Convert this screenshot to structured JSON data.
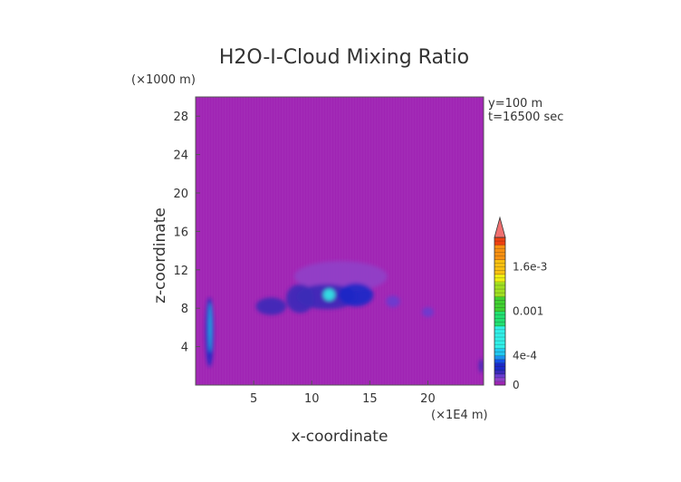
{
  "chart_data": {
    "type": "heatmap",
    "title": "H2O-I-Cloud Mixing Ratio",
    "xlabel": "x-coordinate",
    "ylabel": "z-coordinate",
    "x_unit": "(×1E4 m)",
    "y_unit": "(×1000 m)",
    "annotations": [
      "y=100 m",
      "t=16500 sec"
    ],
    "xlim": [
      0,
      24.8
    ],
    "ylim": [
      0,
      30
    ],
    "x_ticks": [
      5,
      10,
      15,
      20
    ],
    "y_ticks": [
      4,
      8,
      12,
      16,
      20,
      24,
      28
    ],
    "colorbar": {
      "min": 0,
      "max": 0.002,
      "tick_labels": [
        "0",
        "4e-4",
        "0.001",
        "1.6e-3"
      ],
      "tick_values": [
        0,
        0.0004,
        0.001,
        0.0016
      ],
      "extend": "max"
    },
    "background_value": 0,
    "regions": [
      {
        "x": 1.2,
        "z": 5.5,
        "rx": 0.35,
        "rz": 3.6,
        "value": 0.00025
      },
      {
        "x": 1.25,
        "z": 6.0,
        "rx": 0.12,
        "rz": 2.6,
        "value": 0.00045
      },
      {
        "x": 6.5,
        "z": 8.2,
        "rx": 1.3,
        "rz": 0.9,
        "value": 0.00015
      },
      {
        "x": 9.0,
        "z": 9.0,
        "rx": 1.2,
        "rz": 1.5,
        "value": 0.00018
      },
      {
        "x": 11.3,
        "z": 9.2,
        "rx": 2.6,
        "rz": 1.3,
        "value": 0.00016
      },
      {
        "x": 13.8,
        "z": 9.4,
        "rx": 1.5,
        "rz": 1.2,
        "value": 0.0002
      },
      {
        "x": 11.5,
        "z": 9.4,
        "rx": 0.5,
        "rz": 0.6,
        "value": 0.0005
      },
      {
        "x": 17.0,
        "z": 8.7,
        "rx": 0.6,
        "rz": 0.6,
        "value": 0.00012
      },
      {
        "x": 20.0,
        "z": 7.6,
        "rx": 0.5,
        "rz": 0.5,
        "value": 0.00012
      },
      {
        "x": 12.5,
        "z": 11.3,
        "rx": 4.0,
        "rz": 1.6,
        "value": 6e-05
      },
      {
        "x": 24.6,
        "z": 2.0,
        "rx": 0.2,
        "rz": 0.7,
        "value": 0.00015
      }
    ]
  }
}
